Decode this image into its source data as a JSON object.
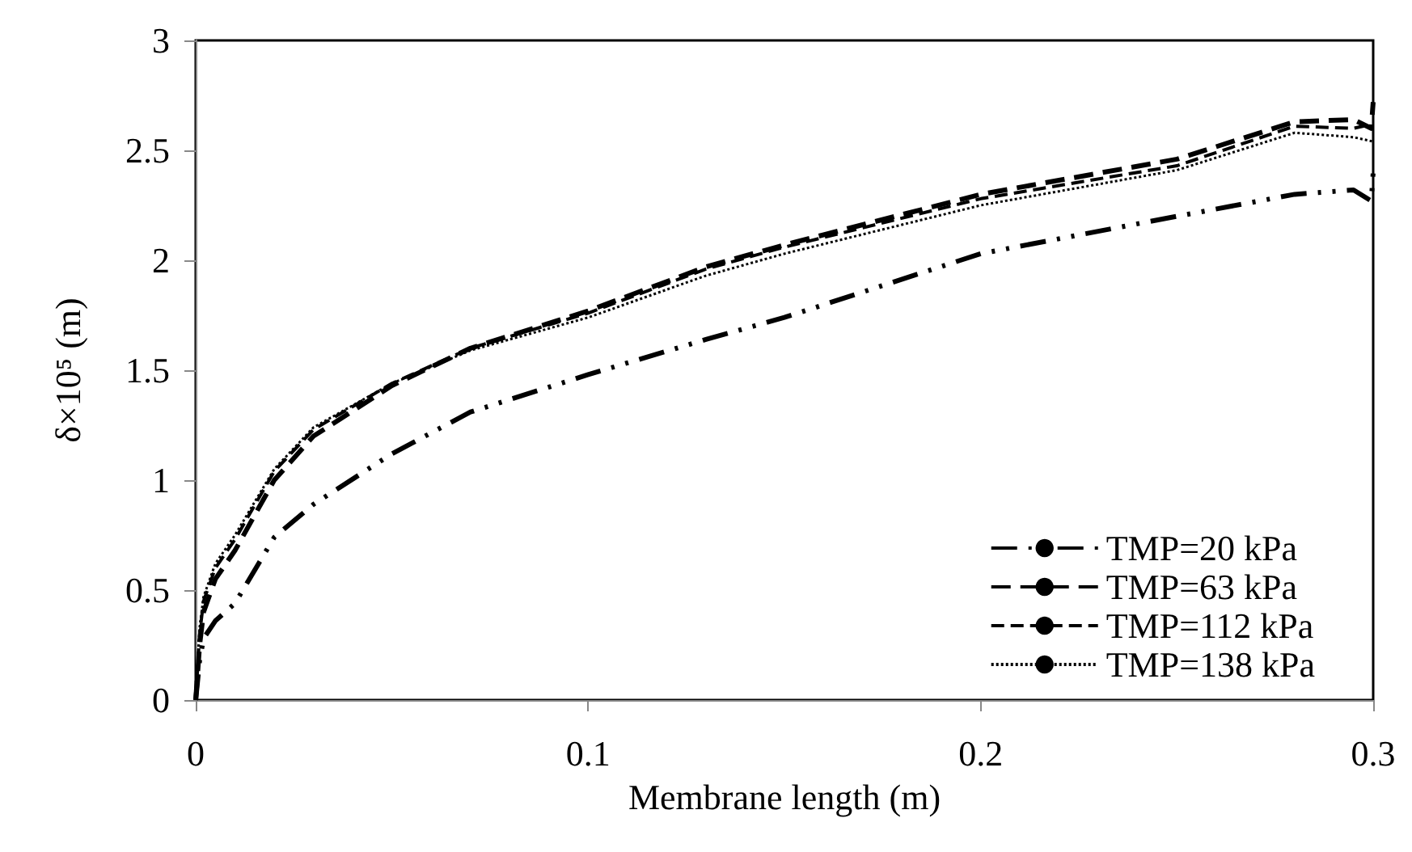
{
  "chart_data": {
    "type": "line",
    "xlabel": "Membrane length (m)",
    "ylabel": "δ×10⁵ (m)",
    "xlim": [
      0,
      0.3
    ],
    "xticks": [
      0,
      0.1,
      0.2,
      0.3
    ],
    "ylim": [
      0,
      3
    ],
    "yticks": [
      0,
      0.5,
      1,
      1.5,
      2,
      2.5,
      3
    ],
    "grid": false,
    "legend": "bottom right",
    "marker": "none",
    "series": [
      {
        "name": "TMP=20 kPa",
        "color": "#000000",
        "line_style": "dashdot",
        "x": [
          0,
          0.001,
          0.002,
          0.005,
          0.01,
          0.02,
          0.03,
          0.05,
          0.07,
          0.1,
          0.13,
          0.15,
          0.2,
          0.25,
          0.28,
          0.295,
          0.2995,
          0.3
        ],
        "values": [
          0,
          0.18,
          0.28,
          0.36,
          0.44,
          0.74,
          0.89,
          1.12,
          1.31,
          1.48,
          1.64,
          1.74,
          2.03,
          2.2,
          2.3,
          2.32,
          2.27,
          2.4
        ]
      },
      {
        "name": "TMP=63 kPa",
        "color": "#000000",
        "line_style": "dashed",
        "x": [
          0,
          0.001,
          0.002,
          0.005,
          0.01,
          0.02,
          0.03,
          0.05,
          0.07,
          0.1,
          0.13,
          0.15,
          0.2,
          0.25,
          0.28,
          0.295,
          0.2995,
          0.3
        ],
        "values": [
          0,
          0.25,
          0.4,
          0.55,
          0.68,
          1.0,
          1.2,
          1.43,
          1.6,
          1.77,
          1.97,
          2.07,
          2.3,
          2.46,
          2.63,
          2.64,
          2.6,
          2.72
        ]
      },
      {
        "name": "TMP=112 kPa",
        "color": "#000000",
        "line_style": "dashed",
        "x": [
          0,
          0.001,
          0.002,
          0.005,
          0.01,
          0.02,
          0.03,
          0.05,
          0.07,
          0.1,
          0.13,
          0.15,
          0.2,
          0.25,
          0.28,
          0.295,
          0.3
        ],
        "values": [
          0,
          0.3,
          0.45,
          0.6,
          0.73,
          1.04,
          1.23,
          1.44,
          1.6,
          1.76,
          1.96,
          2.06,
          2.28,
          2.43,
          2.61,
          2.6,
          2.62
        ]
      },
      {
        "name": "TMP=138 kPa",
        "color": "#000000",
        "line_style": "dotted",
        "x": [
          0,
          0.001,
          0.002,
          0.005,
          0.01,
          0.02,
          0.03,
          0.05,
          0.07,
          0.1,
          0.13,
          0.15,
          0.2,
          0.25,
          0.28,
          0.295,
          0.3
        ],
        "values": [
          0,
          0.33,
          0.47,
          0.62,
          0.75,
          1.05,
          1.24,
          1.44,
          1.59,
          1.74,
          1.93,
          2.03,
          2.25,
          2.41,
          2.58,
          2.56,
          2.54
        ]
      }
    ]
  }
}
